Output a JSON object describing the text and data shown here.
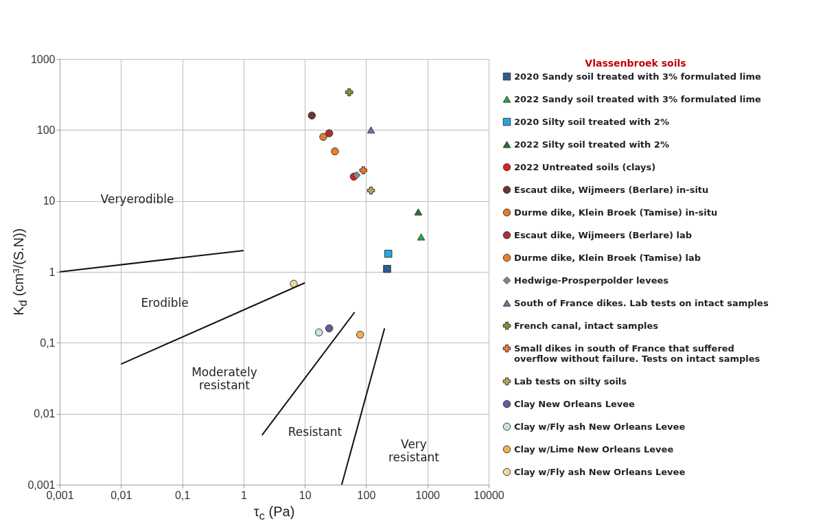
{
  "chart_data": {
    "type": "scatter",
    "xlabel": "τ$_{c}$ (Pa)",
    "ylabel": "K$_{d}$ (cm³/(S.N))",
    "legend_title": "Vlassenbroek soils",
    "log": "xy",
    "grid": true,
    "legend": "right",
    "xlim": [
      0.001,
      10000
    ],
    "ylim": [
      0.001,
      1000
    ],
    "xticks": [
      {
        "value": 0.001,
        "label": "0,001"
      },
      {
        "value": 0.01,
        "label": "0,01"
      },
      {
        "value": 0.1,
        "label": "0,1"
      },
      1,
      10,
      100,
      1000,
      10000
    ],
    "yticks": [
      {
        "value": 0.001,
        "label": "0,001"
      },
      {
        "value": 0.01,
        "label": "0,01"
      },
      {
        "value": 0.1,
        "label": "0,1"
      },
      1,
      10,
      100,
      1000
    ],
    "series": [
      {
        "name": "2020 Sandy soil treated with 3% formulated lime",
        "color": "#2e5b8f",
        "marker": "square",
        "x": [
          220
        ],
        "values": [
          1.1
        ]
      },
      {
        "name": "2022 Sandy soil treated with 3% formulated lime",
        "color": "#2aa84a",
        "marker": "triangle",
        "x": [
          790
        ],
        "values": [
          3.1
        ]
      },
      {
        "name": "2020 Silty soil treated with 2%",
        "color": "#22a8e0",
        "marker": "square",
        "x": [
          230
        ],
        "values": [
          1.8
        ]
      },
      {
        "name": "2022 Silty soil treated with 2%",
        "color": "#1d7a33",
        "marker": "triangle",
        "x": [
          710
        ],
        "values": [
          7
        ]
      },
      {
        "name": "2022 Untreated soils (clays)",
        "color": "#e02020",
        "marker": "circle",
        "x": [
          63
        ],
        "values": [
          22
        ]
      },
      {
        "name": "Escaut dike, Wijmeers (Berlare) in-situ",
        "color": "#6b3535",
        "marker": "circle",
        "x": [
          13
        ],
        "values": [
          160
        ]
      },
      {
        "name": "Durme dike, Klein Broek (Tamise) in-situ",
        "color": "#e07b2a",
        "marker": "circle",
        "x": [
          20
        ],
        "values": [
          80
        ]
      },
      {
        "name": "Escaut dike, Wijmeers (Berlare) lab",
        "color": "#a83232",
        "marker": "circle",
        "x": [
          25
        ],
        "values": [
          90
        ]
      },
      {
        "name": "Durme dike, Klein Broek (Tamise) lab",
        "color": "#f07d20",
        "marker": "circle",
        "x": [
          31
        ],
        "values": [
          50
        ]
      },
      {
        "name": "Hedwige-Prosperpolder levees",
        "color": "#888888",
        "marker": "diamond",
        "x": [
          70
        ],
        "values": [
          23
        ]
      },
      {
        "name": "South of France dikes. Lab tests on intact samples",
        "color": "#7b6fa8",
        "marker": "triangle",
        "x": [
          120
        ],
        "values": [
          100
        ]
      },
      {
        "name": "French canal, intact samples",
        "color": "#7a9a3a",
        "marker": "cross",
        "x": [
          53
        ],
        "values": [
          340
        ]
      },
      {
        "name": "Small dikes in south of France that suffered overflow without failure. Tests on intact samples",
        "color": "#f07830",
        "marker": "cross",
        "x": [
          90
        ],
        "values": [
          27
        ]
      },
      {
        "name": "Lab tests on silty soils",
        "color": "#b5a660",
        "marker": "cross",
        "x": [
          120
        ],
        "values": [
          14
        ]
      },
      {
        "name": "Clay New Orleans Levee",
        "color": "#6a5a9a",
        "marker": "circle",
        "x": [
          25
        ],
        "values": [
          0.16
        ]
      },
      {
        "name": "Clay w/Fly ash New Orleans Levee",
        "color": "#c8e4e0",
        "marker": "circle",
        "x": [
          17
        ],
        "values": [
          0.14
        ]
      },
      {
        "name": "Clay w/Lime New Orleans Levee",
        "color": "#f0b050",
        "marker": "circle",
        "x": [
          80
        ],
        "values": [
          0.13
        ]
      },
      {
        "name": "Clay w/Fly ash New Orleans Levee ",
        "color": "#e8d8a0",
        "marker": "circle",
        "x": [
          6.6
        ],
        "values": [
          0.68
        ]
      },
      {
        "type": "line",
        "color": "#111111",
        "x": [
          0.001,
          1
        ],
        "values": [
          1,
          2
        ]
      },
      {
        "type": "line",
        "color": "#111111",
        "x": [
          0.01,
          10
        ],
        "values": [
          0.05,
          0.7
        ]
      },
      {
        "type": "line",
        "color": "#111111",
        "x": [
          2,
          65
        ],
        "values": [
          0.005,
          0.27
        ]
      },
      {
        "type": "line",
        "color": "#111111",
        "x": [
          40,
          200
        ],
        "values": [
          0.001,
          0.16
        ]
      }
    ],
    "annotations": [
      "Veryerodible",
      "Erodible",
      "Moderately\nresistant",
      "Resistant",
      "Very\nresistant"
    ]
  }
}
